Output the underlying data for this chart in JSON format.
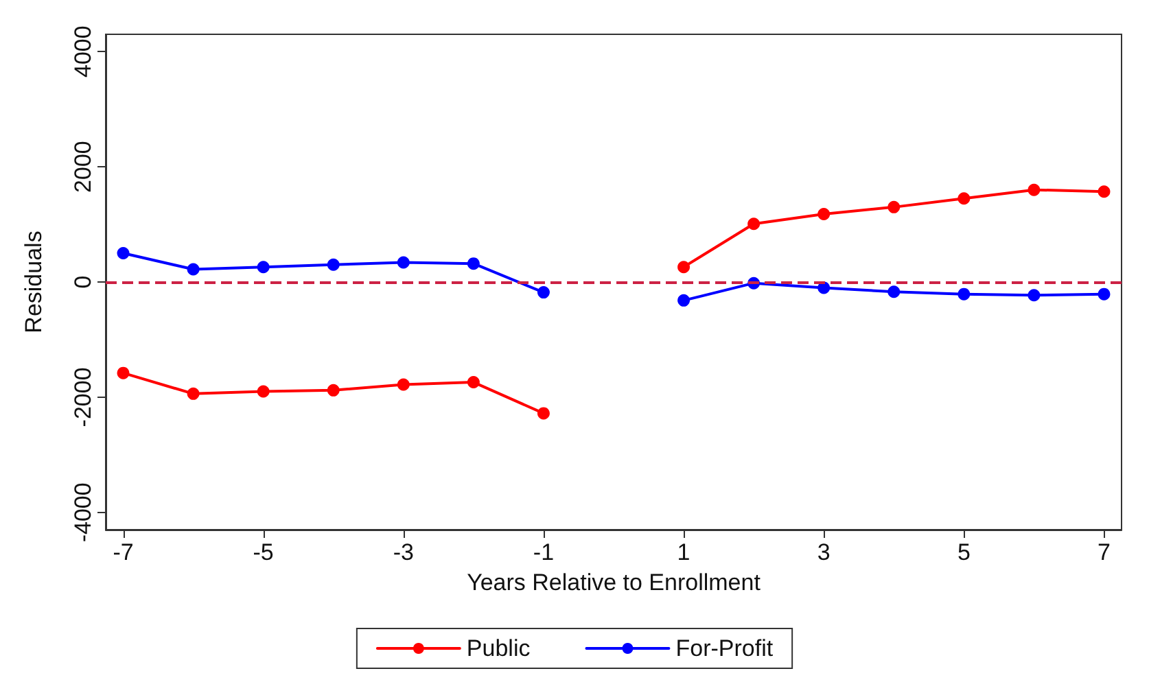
{
  "chart_data": {
    "type": "line",
    "xlabel": "Years Relative to Enrollment",
    "ylabel": "Residuals",
    "x": [
      -7,
      -6,
      -5,
      -4,
      -3,
      -2,
      -1,
      0,
      1,
      2,
      3,
      4,
      5,
      6,
      7
    ],
    "series": [
      {
        "name": "Public",
        "color": "#ff0000",
        "values": [
          -1580,
          -1940,
          -1900,
          -1880,
          -1780,
          -1740,
          -2280,
          null,
          260,
          1010,
          1180,
          1300,
          1450,
          1600,
          1570
        ]
      },
      {
        "name": "For-Profit",
        "color": "#0000ff",
        "values": [
          500,
          220,
          260,
          300,
          340,
          320,
          -180,
          null,
          -320,
          -20,
          -100,
          -170,
          -210,
          -230,
          -210
        ]
      }
    ],
    "xlim": [
      -7.25,
      7.25
    ],
    "ylim": [
      -4300,
      4300
    ],
    "xticks": [
      -7,
      -5,
      -3,
      -1,
      1,
      3,
      5,
      7
    ],
    "yticks": [
      -4000,
      -2000,
      0,
      2000,
      4000
    ],
    "ref_lines": [
      {
        "axis": "y",
        "value": 0,
        "color": "#cc2244",
        "line_style": "dashed"
      }
    ],
    "grid": false,
    "legend": "bottom",
    "marker": "circle",
    "line_style": "solid"
  }
}
